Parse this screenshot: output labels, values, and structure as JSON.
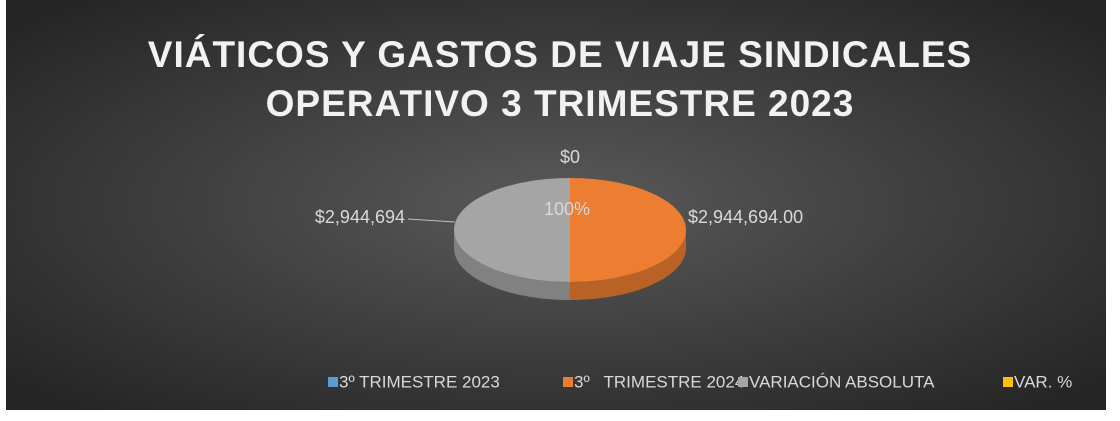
{
  "chart_data": {
    "type": "pie3d",
    "title": [
      "VIÁTICOS Y GASTOS DE VIAJE SINDICALES",
      "OPERATIVO 3 TRIMESTRE 2023"
    ],
    "categories": [
      "3º TRIMESTRE 2023",
      "3º   TRIMESTRE 2024",
      "VARIACIÓN ABSOLUTA",
      "VAR. %"
    ],
    "values": [
      0,
      2944694,
      2944694,
      100
    ],
    "value_labels": [
      "$0",
      "$2,944,694.00",
      "$2,944,694",
      "100%"
    ],
    "colors": [
      "#5b9bd5",
      "#ed7d31",
      "#a5a5a5",
      "#ffc000"
    ],
    "legend": "bottom"
  }
}
